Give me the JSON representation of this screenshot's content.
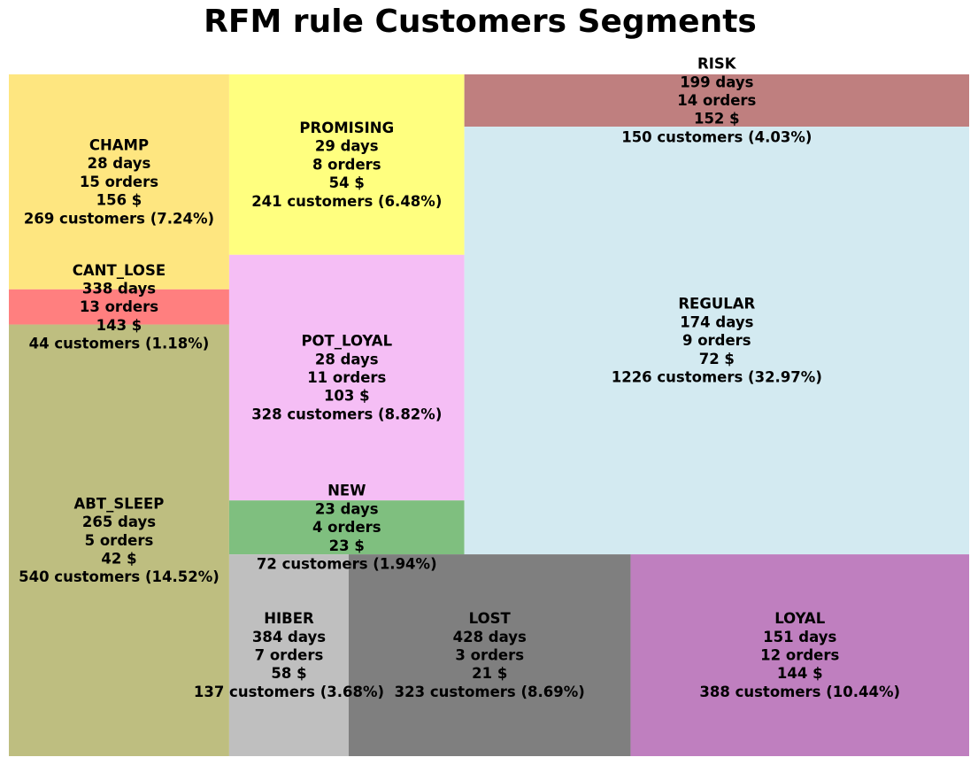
{
  "chart_data": {
    "type": "treemap",
    "title": "RFM rule Customers Segments",
    "segments": [
      {
        "name": "CHAMP",
        "days": "28 days",
        "orders": "15 orders",
        "amount": "156 $",
        "customers": "269 customers (7.24%)",
        "count": 269,
        "percent": 7.24,
        "color": "#FEE680"
      },
      {
        "name": "CANT_LOSE",
        "days": "338 days",
        "orders": "13 orders",
        "amount": "143 $",
        "customers": "44 customers (1.18%)",
        "count": 44,
        "percent": 1.18,
        "color": "#FF7F7F"
      },
      {
        "name": "ABT_SLEEP",
        "days": "265 days",
        "orders": "5 orders",
        "amount": "42 $",
        "customers": "540 customers (14.52%)",
        "count": 540,
        "percent": 14.52,
        "color": "#BEBE80"
      },
      {
        "name": "PROMISING",
        "days": "29 days",
        "orders": "8 orders",
        "amount": "54 $",
        "customers": "241 customers (6.48%)",
        "count": 241,
        "percent": 6.48,
        "color": "#FFFF7F"
      },
      {
        "name": "POT_LOYAL",
        "days": "28 days",
        "orders": "11 orders",
        "amount": "103 $",
        "customers": "328 customers (8.82%)",
        "count": 328,
        "percent": 8.82,
        "color": "#F5BEF5"
      },
      {
        "name": "NEW",
        "days": "23 days",
        "orders": "4 orders",
        "amount": "23 $",
        "customers": "72 customers (1.94%)",
        "count": 72,
        "percent": 1.94,
        "color": "#7FBF7F"
      },
      {
        "name": "RISK",
        "days": "199 days",
        "orders": "14 orders",
        "amount": "152 $",
        "customers": "150 customers (4.03%)",
        "count": 150,
        "percent": 4.03,
        "color": "#BF7F7F"
      },
      {
        "name": "REGULAR",
        "days": "174 days",
        "orders": "9 orders",
        "amount": "72 $",
        "customers": "1226 customers (32.97%)",
        "count": 1226,
        "percent": 32.97,
        "color": "#D3EAF1"
      },
      {
        "name": "HIBER",
        "days": "384 days",
        "orders": "7 orders",
        "amount": "58 $",
        "customers": "137 customers (3.68%)",
        "count": 137,
        "percent": 3.68,
        "color": "#BFBFBF"
      },
      {
        "name": "LOST",
        "days": "428 days",
        "orders": "3 orders",
        "amount": "21 $",
        "customers": "323 customers (8.69%)",
        "count": 323,
        "percent": 8.69,
        "color": "#7F7F7F"
      },
      {
        "name": "LOYAL",
        "days": "151 days",
        "orders": "12 orders",
        "amount": "144 $",
        "customers": "388 customers (10.44%)",
        "count": 388,
        "percent": 10.44,
        "color": "#BF7FBF"
      }
    ]
  }
}
